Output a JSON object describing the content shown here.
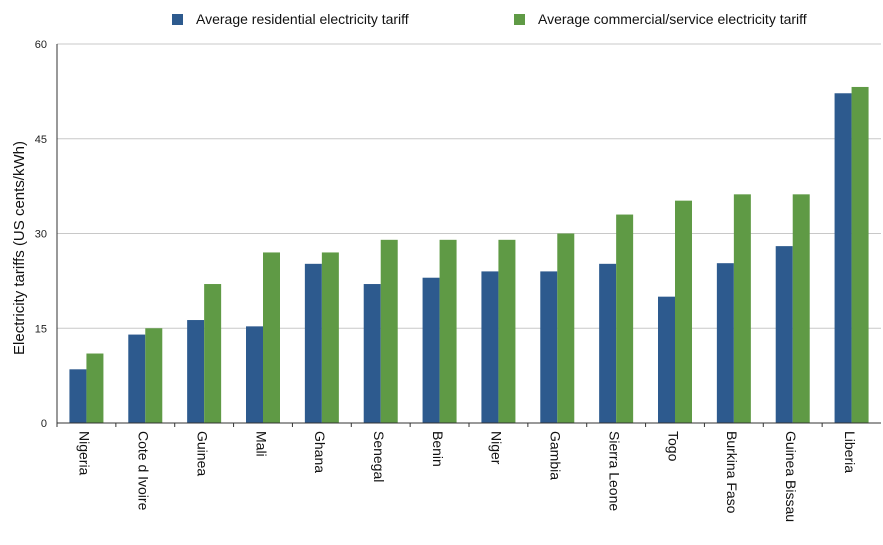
{
  "chart_data": {
    "type": "bar",
    "title": "",
    "xlabel": "",
    "ylabel": "Electricity tariffs  (US cents/kWh)",
    "ylim": [
      0,
      60
    ],
    "yticks": [
      0,
      15,
      30,
      45,
      60
    ],
    "grid": true,
    "legend_position": "top",
    "categories": [
      "Nigeria",
      "Cote d Ivoire",
      "Guinea",
      "Mali",
      "Ghana",
      "Senegal",
      "Benin",
      "Niger",
      "Gambia",
      "Sierra Leone",
      "Togo",
      "Burkina Faso",
      "Guinea Bissau",
      "Liberia"
    ],
    "series": [
      {
        "name": "Average residential electricity tariff",
        "color": "#2d5a8e",
        "values": [
          8.5,
          14,
          16.3,
          15.3,
          25.2,
          22,
          23,
          24,
          24,
          25.2,
          20,
          25.3,
          28,
          52.2
        ]
      },
      {
        "name": "Average commercial/service electricity tariff",
        "color": "#5f9a45",
        "values": [
          11,
          15,
          22,
          27,
          27,
          29,
          29,
          29,
          30,
          33,
          35.2,
          36.2,
          36.2,
          53.2
        ]
      }
    ]
  }
}
